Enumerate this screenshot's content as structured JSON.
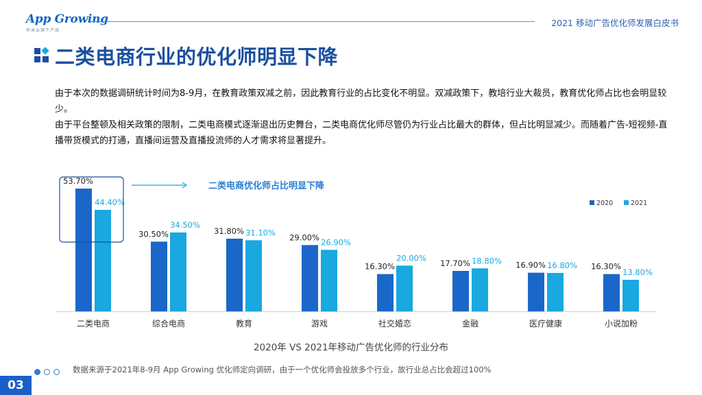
{
  "header": {
    "logo_main": "App Growing",
    "logo_sub": "有米云旗下产品",
    "report_title": "2021 移动广告优化师发展白皮书"
  },
  "page_title": "二类电商行业的优化师明显下降",
  "paragraphs": [
    "由于本次的数据调研统计时间为8-9月，在教育政策双减之前，因此教育行业的占比变化不明显。双减政策下，教培行业大裁员，教育优化师占比也会明显较少。",
    "由于平台整顿及相关政策的限制，二类电商模式逐渐退出历史舞台，二类电商优化师尽管仍为行业占比最大的群体，但占比明显减少。而随着广告-短视频-直播带货模式的打通，直播间运营及直播投流师的人才需求将显著提升。"
  ],
  "colors": {
    "series_2020": "#1a67c9",
    "series_2021": "#19a8e0",
    "title": "#1a4fa0",
    "accent": "#2b5fb0"
  },
  "chart_data": {
    "type": "bar",
    "title": "2020年 VS 2021年移动广告优化师的行业分布",
    "categories": [
      "二类电商",
      "综合电商",
      "教育",
      "游戏",
      "社交婚恋",
      "金融",
      "医疗健康",
      "小说加粉"
    ],
    "series": [
      {
        "name": "2020",
        "values": [
          53.7,
          30.5,
          31.8,
          29.0,
          16.3,
          17.7,
          16.9,
          16.3
        ],
        "labels": [
          "53.70%",
          "30.50%",
          "31.80%",
          "29.00%",
          "16.30%",
          "17.70%",
          "16.90%",
          "16.30%"
        ]
      },
      {
        "name": "2021",
        "values": [
          44.4,
          34.5,
          31.1,
          26.9,
          20.0,
          18.8,
          16.8,
          13.8
        ],
        "labels": [
          "44.40%",
          "34.50%",
          "31.10%",
          "26.90%",
          "20.00%",
          "18.80%",
          "16.80%",
          "13.80%"
        ]
      }
    ],
    "ylim": [
      0,
      60
    ],
    "legend_position": "top-right",
    "annotation": "二类电商优化师占比明显下降"
  },
  "footer": {
    "source_note": "数据来源于2021年8-9月 App Growing 优化师定向调研，由于一个优化师会投放多个行业，故行业总占比会超过100%",
    "page_number": "03"
  }
}
